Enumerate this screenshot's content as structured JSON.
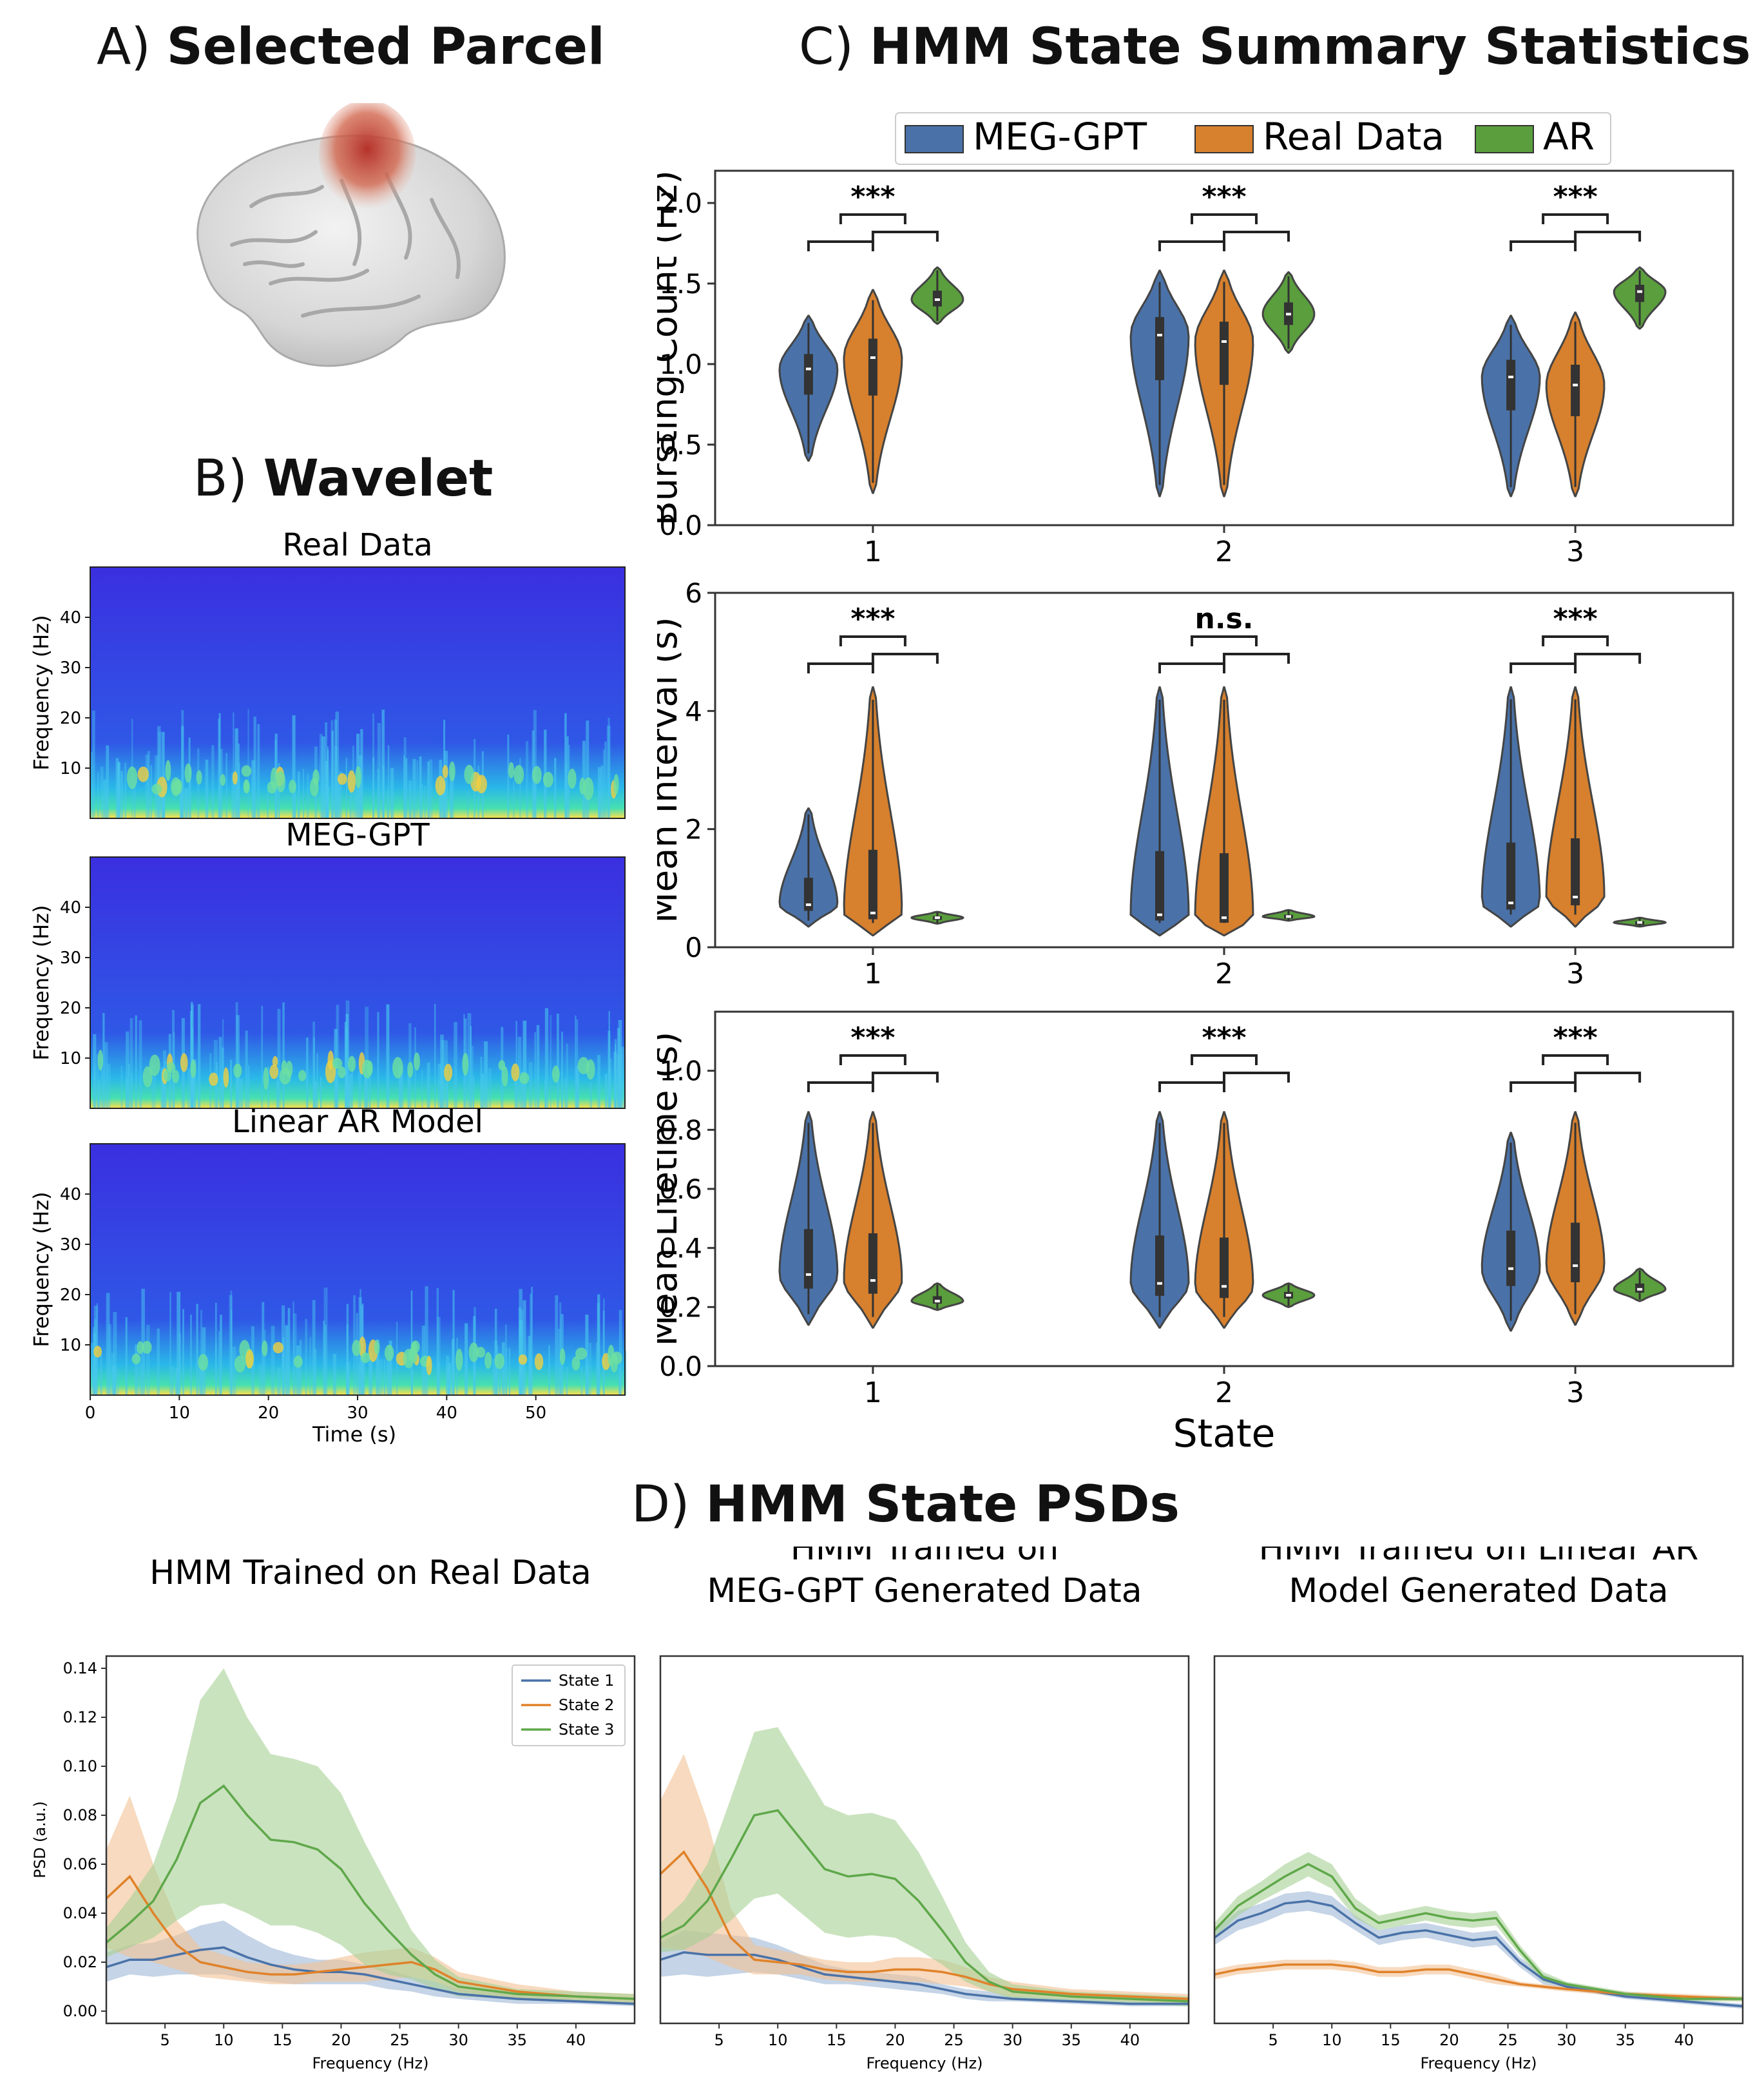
{
  "panelA": {
    "letter": "A)",
    "title": "Selected Parcel"
  },
  "panelB": {
    "letter": "B)",
    "title": "Wavelet",
    "plots": [
      {
        "title": "Real Data",
        "ylabel": "Frequency (Hz)"
      },
      {
        "title": "MEG-GPT",
        "ylabel": "Frequency (Hz)"
      },
      {
        "title": "Linear AR Model",
        "ylabel": "Frequency (Hz)"
      }
    ],
    "yticks": [
      "10",
      "20",
      "30",
      "40"
    ],
    "xticks": [
      "0",
      "10",
      "20",
      "30",
      "40",
      "50"
    ],
    "xlabel": "Time (s)"
  },
  "panelC": {
    "letter": "C)",
    "title": "HMM State Summary Statistics",
    "xlabel": "State",
    "legend": [
      "MEG-GPT",
      "Real Data",
      "AR"
    ],
    "colors": {
      "meggpt": "#4a72a8",
      "real": "#d7802d",
      "ar": "#5a9e3d"
    }
  },
  "panelD": {
    "letter": "D)",
    "title": "HMM State PSDs"
  },
  "chart_data": [
    {
      "type": "violin",
      "ylabel": "Bursting Count (Hz)",
      "xlabel": "State",
      "categories": [
        "1",
        "2",
        "3"
      ],
      "ylim": [
        0,
        2.2
      ],
      "yticks": [
        "0.0",
        "0.5",
        "1.0",
        "1.5",
        "2.0"
      ],
      "significance": [
        "***",
        "***",
        "***"
      ],
      "series": [
        {
          "name": "MEG-GPT",
          "medians": [
            0.97,
            1.18,
            0.92
          ],
          "min": [
            0.4,
            0.18,
            0.18
          ],
          "max": [
            1.3,
            1.58,
            1.3
          ]
        },
        {
          "name": "Real Data",
          "medians": [
            1.04,
            1.14,
            0.87
          ],
          "min": [
            0.2,
            0.18,
            0.18
          ],
          "max": [
            1.46,
            1.58,
            1.32
          ]
        },
        {
          "name": "AR",
          "medians": [
            1.4,
            1.31,
            1.45
          ],
          "min": [
            1.25,
            1.07,
            1.22
          ],
          "max": [
            1.6,
            1.57,
            1.6
          ]
        }
      ]
    },
    {
      "type": "violin",
      "ylabel": "Mean Interval (s)",
      "xlabel": "State",
      "categories": [
        "1",
        "2",
        "3"
      ],
      "ylim": [
        0,
        6
      ],
      "yticks": [
        "0",
        "2",
        "4",
        "6"
      ],
      "significance": [
        "***",
        "n.s.",
        "***"
      ],
      "series": [
        {
          "name": "MEG-GPT",
          "medians": [
            0.72,
            0.55,
            0.75
          ],
          "min": [
            0.35,
            0.2,
            0.35
          ],
          "max": [
            2.35,
            4.4,
            4.4
          ]
        },
        {
          "name": "Real Data",
          "medians": [
            0.58,
            0.5,
            0.85
          ],
          "min": [
            0.2,
            0.2,
            0.35
          ],
          "max": [
            4.4,
            4.4,
            4.4
          ]
        },
        {
          "name": "AR",
          "medians": [
            0.5,
            0.52,
            0.42
          ],
          "min": [
            0.4,
            0.45,
            0.35
          ],
          "max": [
            0.6,
            0.63,
            0.5
          ]
        }
      ]
    },
    {
      "type": "violin",
      "ylabel": "Mean Lifetime (s)",
      "xlabel": "State",
      "categories": [
        "1",
        "2",
        "3"
      ],
      "ylim": [
        0,
        1.2
      ],
      "yticks": [
        "0.0",
        "0.2",
        "0.4",
        "0.6",
        "0.8",
        "1.0"
      ],
      "significance": [
        "***",
        "***",
        "***"
      ],
      "series": [
        {
          "name": "MEG-GPT",
          "medians": [
            0.31,
            0.28,
            0.33
          ],
          "min": [
            0.14,
            0.13,
            0.12
          ],
          "max": [
            0.86,
            0.86,
            0.79
          ]
        },
        {
          "name": "Real Data",
          "medians": [
            0.29,
            0.27,
            0.34
          ],
          "min": [
            0.13,
            0.13,
            0.14
          ],
          "max": [
            0.86,
            0.86,
            0.86
          ]
        },
        {
          "name": "AR",
          "medians": [
            0.22,
            0.24,
            0.26
          ],
          "min": [
            0.19,
            0.2,
            0.22
          ],
          "max": [
            0.28,
            0.28,
            0.33
          ]
        }
      ]
    },
    {
      "type": "line",
      "title": "HMM Trained on Real Data",
      "xlabel": "Frequency (Hz)",
      "ylabel": "PSD (a.u.)",
      "xlim": [
        0,
        45
      ],
      "ylim": [
        -0.005,
        0.145
      ],
      "xticks": [
        "5",
        "10",
        "15",
        "20",
        "25",
        "30",
        "35",
        "40"
      ],
      "yticks": [
        "0.00",
        "0.02",
        "0.04",
        "0.06",
        "0.08",
        "0.10",
        "0.12",
        "0.14"
      ],
      "legend": [
        "State 1",
        "State 2",
        "State 3"
      ],
      "x": [
        0,
        2,
        4,
        6,
        8,
        10,
        12,
        14,
        16,
        18,
        20,
        22,
        24,
        26,
        28,
        30,
        35,
        40,
        45
      ],
      "series": [
        {
          "name": "State 1",
          "values": [
            0.018,
            0.021,
            0.021,
            0.023,
            0.025,
            0.026,
            0.022,
            0.019,
            0.017,
            0.016,
            0.016,
            0.015,
            0.013,
            0.011,
            0.009,
            0.007,
            0.005,
            0.004,
            0.003
          ],
          "band": [
            0.006,
            0.006,
            0.007,
            0.008,
            0.01,
            0.011,
            0.009,
            0.007,
            0.006,
            0.005,
            0.005,
            0.004,
            0.004,
            0.003,
            0.003,
            0.002,
            0.002,
            0.001,
            0.001
          ]
        },
        {
          "name": "State 2",
          "values": [
            0.046,
            0.055,
            0.04,
            0.027,
            0.02,
            0.018,
            0.016,
            0.015,
            0.015,
            0.016,
            0.017,
            0.018,
            0.019,
            0.02,
            0.017,
            0.012,
            0.008,
            0.006,
            0.005
          ],
          "band": [
            0.02,
            0.033,
            0.02,
            0.01,
            0.006,
            0.005,
            0.004,
            0.004,
            0.004,
            0.004,
            0.005,
            0.006,
            0.006,
            0.006,
            0.005,
            0.004,
            0.003,
            0.002,
            0.002
          ]
        },
        {
          "name": "State 3",
          "values": [
            0.028,
            0.036,
            0.045,
            0.062,
            0.085,
            0.092,
            0.08,
            0.07,
            0.069,
            0.066,
            0.058,
            0.044,
            0.033,
            0.023,
            0.015,
            0.01,
            0.007,
            0.006,
            0.005
          ],
          "band": [
            0.006,
            0.01,
            0.015,
            0.025,
            0.042,
            0.048,
            0.04,
            0.035,
            0.034,
            0.034,
            0.031,
            0.025,
            0.018,
            0.01,
            0.006,
            0.004,
            0.002,
            0.002,
            0.002
          ]
        }
      ]
    },
    {
      "type": "line",
      "title": "HMM Trained on\nMEG-GPT Generated Data",
      "xlabel": "Frequency (Hz)",
      "ylabel": "",
      "xlim": [
        0,
        45
      ],
      "ylim": [
        -0.005,
        0.145
      ],
      "xticks": [
        "5",
        "10",
        "15",
        "20",
        "25",
        "30",
        "35",
        "40"
      ],
      "x": [
        0,
        2,
        4,
        6,
        8,
        10,
        12,
        14,
        16,
        18,
        20,
        22,
        24,
        26,
        28,
        30,
        35,
        40,
        45
      ],
      "series": [
        {
          "name": "State 1",
          "values": [
            0.021,
            0.024,
            0.023,
            0.023,
            0.023,
            0.021,
            0.018,
            0.015,
            0.014,
            0.013,
            0.012,
            0.011,
            0.009,
            0.007,
            0.006,
            0.005,
            0.004,
            0.003,
            0.003
          ],
          "band": [
            0.007,
            0.009,
            0.009,
            0.008,
            0.007,
            0.006,
            0.005,
            0.004,
            0.003,
            0.003,
            0.003,
            0.003,
            0.002,
            0.002,
            0.002,
            0.001,
            0.001,
            0.001,
            0.001
          ]
        },
        {
          "name": "State 2",
          "values": [
            0.056,
            0.065,
            0.05,
            0.03,
            0.021,
            0.02,
            0.019,
            0.017,
            0.016,
            0.016,
            0.017,
            0.017,
            0.016,
            0.014,
            0.011,
            0.009,
            0.007,
            0.006,
            0.005
          ],
          "band": [
            0.03,
            0.04,
            0.028,
            0.012,
            0.006,
            0.005,
            0.004,
            0.004,
            0.004,
            0.004,
            0.005,
            0.005,
            0.005,
            0.004,
            0.003,
            0.003,
            0.002,
            0.002,
            0.002
          ]
        },
        {
          "name": "State 3",
          "values": [
            0.03,
            0.035,
            0.045,
            0.062,
            0.08,
            0.082,
            0.07,
            0.058,
            0.055,
            0.056,
            0.054,
            0.045,
            0.033,
            0.02,
            0.012,
            0.008,
            0.006,
            0.005,
            0.004
          ],
          "band": [
            0.006,
            0.01,
            0.015,
            0.025,
            0.034,
            0.034,
            0.03,
            0.026,
            0.025,
            0.025,
            0.024,
            0.02,
            0.014,
            0.008,
            0.004,
            0.003,
            0.002,
            0.002,
            0.002
          ]
        }
      ]
    },
    {
      "type": "line",
      "title": "HMM Trained on Linear AR\nModel Generated Data",
      "xlabel": "Frequency (Hz)",
      "ylabel": "",
      "xlim": [
        0,
        45
      ],
      "ylim": [
        -0.005,
        0.145
      ],
      "xticks": [
        "5",
        "10",
        "15",
        "20",
        "25",
        "30",
        "35",
        "40"
      ],
      "x": [
        0,
        2,
        4,
        6,
        8,
        10,
        12,
        14,
        16,
        18,
        20,
        22,
        24,
        26,
        28,
        30,
        35,
        40,
        45
      ],
      "series": [
        {
          "name": "State 1",
          "values": [
            0.03,
            0.037,
            0.04,
            0.044,
            0.045,
            0.043,
            0.036,
            0.03,
            0.032,
            0.033,
            0.031,
            0.029,
            0.03,
            0.02,
            0.013,
            0.01,
            0.006,
            0.004,
            0.002
          ],
          "band": [
            0.003,
            0.004,
            0.004,
            0.004,
            0.004,
            0.004,
            0.003,
            0.003,
            0.003,
            0.003,
            0.003,
            0.003,
            0.003,
            0.002,
            0.002,
            0.001,
            0.001,
            0.001,
            0.001
          ]
        },
        {
          "name": "State 2",
          "values": [
            0.015,
            0.017,
            0.018,
            0.019,
            0.019,
            0.019,
            0.018,
            0.016,
            0.016,
            0.017,
            0.017,
            0.015,
            0.013,
            0.011,
            0.01,
            0.009,
            0.007,
            0.006,
            0.005
          ],
          "band": [
            0.002,
            0.002,
            0.002,
            0.002,
            0.002,
            0.002,
            0.002,
            0.002,
            0.002,
            0.002,
            0.002,
            0.002,
            0.002,
            0.001,
            0.001,
            0.001,
            0.001,
            0.001,
            0.001
          ]
        },
        {
          "name": "State 3",
          "values": [
            0.033,
            0.043,
            0.049,
            0.055,
            0.06,
            0.055,
            0.042,
            0.036,
            0.038,
            0.04,
            0.038,
            0.037,
            0.038,
            0.025,
            0.014,
            0.011,
            0.007,
            0.005,
            0.005
          ],
          "band": [
            0.003,
            0.004,
            0.004,
            0.005,
            0.005,
            0.005,
            0.004,
            0.003,
            0.003,
            0.003,
            0.003,
            0.003,
            0.003,
            0.002,
            0.002,
            0.001,
            0.001,
            0.001,
            0.001
          ]
        }
      ]
    }
  ]
}
